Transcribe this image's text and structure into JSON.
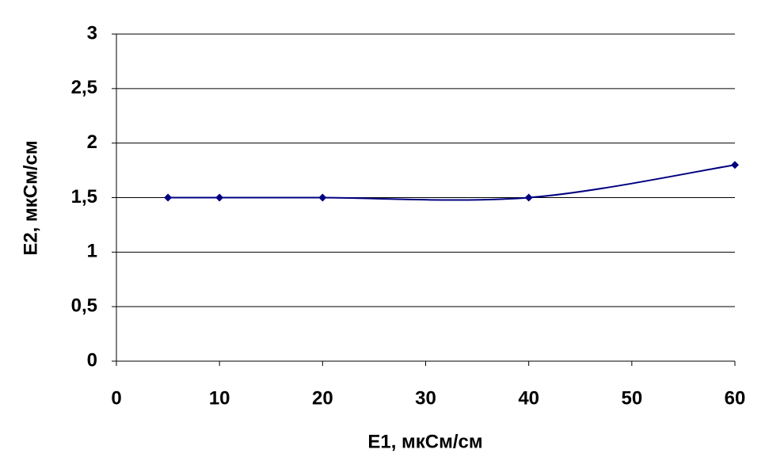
{
  "chart_data": {
    "type": "line",
    "smooth": true,
    "x": [
      5,
      10,
      20,
      40,
      60
    ],
    "series": [
      {
        "color": "#000080",
        "values": [
          1.5,
          1.5,
          1.5,
          1.5,
          1.8
        ]
      }
    ],
    "xlabel": "E1, мкСм/см",
    "ylabel": "E2, мкСм/см",
    "xlim": [
      0,
      60
    ],
    "xticks": [
      0,
      10,
      20,
      30,
      40,
      50,
      60
    ],
    "ylim": [
      0,
      3
    ],
    "yticks": [
      0,
      {
        "value": 0.5,
        "label": "0,5"
      },
      1,
      {
        "value": 1.5,
        "label": "1,5"
      },
      2,
      {
        "value": 2.5,
        "label": "2,5"
      },
      3
    ],
    "grid": true
  }
}
